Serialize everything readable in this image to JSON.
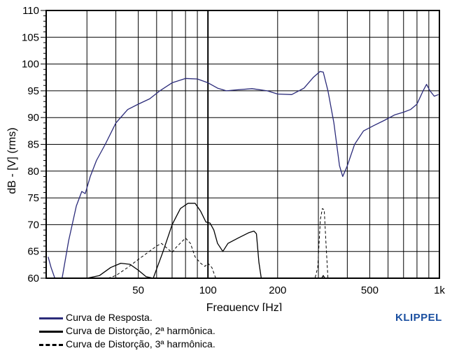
{
  "chart_data": {
    "type": "line",
    "xlabel": "Frequency [Hz]",
    "ylabel": "dB - [V] (rms)",
    "x_scale": "log",
    "xlim": [
      20,
      1000
    ],
    "ylim": [
      60,
      110
    ],
    "x_ticks": [
      {
        "value": 50,
        "label": "50"
      },
      {
        "value": 100,
        "label": "100"
      },
      {
        "value": 200,
        "label": "200"
      },
      {
        "value": 500,
        "label": "500"
      },
      {
        "value": 1000,
        "label": "1k"
      }
    ],
    "y_ticks": [
      60,
      65,
      70,
      75,
      80,
      85,
      90,
      95,
      100,
      105,
      110
    ],
    "grid": true,
    "legend_position": "bottom-left",
    "series": [
      {
        "name": "Curva de Resposta.",
        "color": "#2b2b7a",
        "style": "solid",
        "points": [
          [
            20.4,
            64
          ],
          [
            21,
            62
          ],
          [
            22,
            59.5
          ],
          [
            23,
            58
          ],
          [
            25,
            67
          ],
          [
            27,
            73.5
          ],
          [
            28.5,
            76.2
          ],
          [
            29.5,
            75.8
          ],
          [
            31,
            79
          ],
          [
            33,
            82
          ],
          [
            36,
            85
          ],
          [
            40,
            89
          ],
          [
            45,
            91.5
          ],
          [
            50,
            92.5
          ],
          [
            56,
            93.5
          ],
          [
            62,
            95
          ],
          [
            70,
            96.5
          ],
          [
            80,
            97.3
          ],
          [
            90,
            97.2
          ],
          [
            100,
            96.5
          ],
          [
            110,
            95.5
          ],
          [
            120,
            95
          ],
          [
            135,
            95.2
          ],
          [
            155,
            95.4
          ],
          [
            180,
            95
          ],
          [
            200,
            94.4
          ],
          [
            230,
            94.3
          ],
          [
            260,
            95.5
          ],
          [
            285,
            97.5
          ],
          [
            305,
            98.6
          ],
          [
            315,
            98.5
          ],
          [
            330,
            95
          ],
          [
            350,
            89
          ],
          [
            370,
            81
          ],
          [
            382,
            79
          ],
          [
            400,
            81
          ],
          [
            430,
            85
          ],
          [
            470,
            87.5
          ],
          [
            520,
            88.5
          ],
          [
            580,
            89.5
          ],
          [
            640,
            90.5
          ],
          [
            700,
            91
          ],
          [
            750,
            91.5
          ],
          [
            800,
            92.5
          ],
          [
            850,
            95
          ],
          [
            880,
            96.2
          ],
          [
            910,
            95
          ],
          [
            950,
            94
          ],
          [
            990,
            94.3
          ]
        ]
      },
      {
        "name": "Curva de Distorção, 2ª harmônica.",
        "color": "#000000",
        "style": "solid",
        "points": [
          [
            30,
            60
          ],
          [
            34,
            60.5
          ],
          [
            38,
            62
          ],
          [
            42,
            62.8
          ],
          [
            46,
            62.6
          ],
          [
            50,
            61.5
          ],
          [
            54,
            60.3
          ],
          [
            58,
            60
          ],
          [
            64,
            65
          ],
          [
            70,
            70
          ],
          [
            76,
            73
          ],
          [
            82,
            74
          ],
          [
            88,
            74
          ],
          [
            93,
            72.5
          ],
          [
            98,
            70.5
          ],
          [
            102,
            70.3
          ],
          [
            106,
            69
          ],
          [
            110,
            66.5
          ],
          [
            116,
            65
          ],
          [
            122,
            66.5
          ],
          [
            135,
            67.5
          ],
          [
            150,
            68.5
          ],
          [
            158,
            68.8
          ],
          [
            162,
            68.3
          ],
          [
            166,
            63
          ],
          [
            170,
            60
          ],
          [
            310,
            60
          ],
          [
            315,
            60.5
          ],
          [
            320,
            60
          ],
          [
            325,
            60
          ]
        ]
      },
      {
        "name": "Curva de Distorção, 3ª harmônica.",
        "color": "#000000",
        "style": "dashed",
        "points": [
          [
            37,
            60
          ],
          [
            40,
            60.5
          ],
          [
            45,
            62
          ],
          [
            50,
            63.5
          ],
          [
            55,
            64.8
          ],
          [
            60,
            66
          ],
          [
            63,
            66.5
          ],
          [
            67,
            65.5
          ],
          [
            70,
            64.8
          ],
          [
            73,
            65.8
          ],
          [
            77,
            66.8
          ],
          [
            80,
            67.5
          ],
          [
            84,
            66.5
          ],
          [
            88,
            64
          ],
          [
            93,
            62.8
          ],
          [
            97,
            62.2
          ],
          [
            100,
            62.8
          ],
          [
            104,
            62
          ],
          [
            108,
            60
          ],
          [
            290,
            60
          ],
          [
            298,
            62
          ],
          [
            306,
            71
          ],
          [
            312,
            73
          ],
          [
            318,
            72.8
          ],
          [
            324,
            66
          ],
          [
            330,
            60
          ]
        ]
      }
    ]
  },
  "brand": "KLIPPEL"
}
